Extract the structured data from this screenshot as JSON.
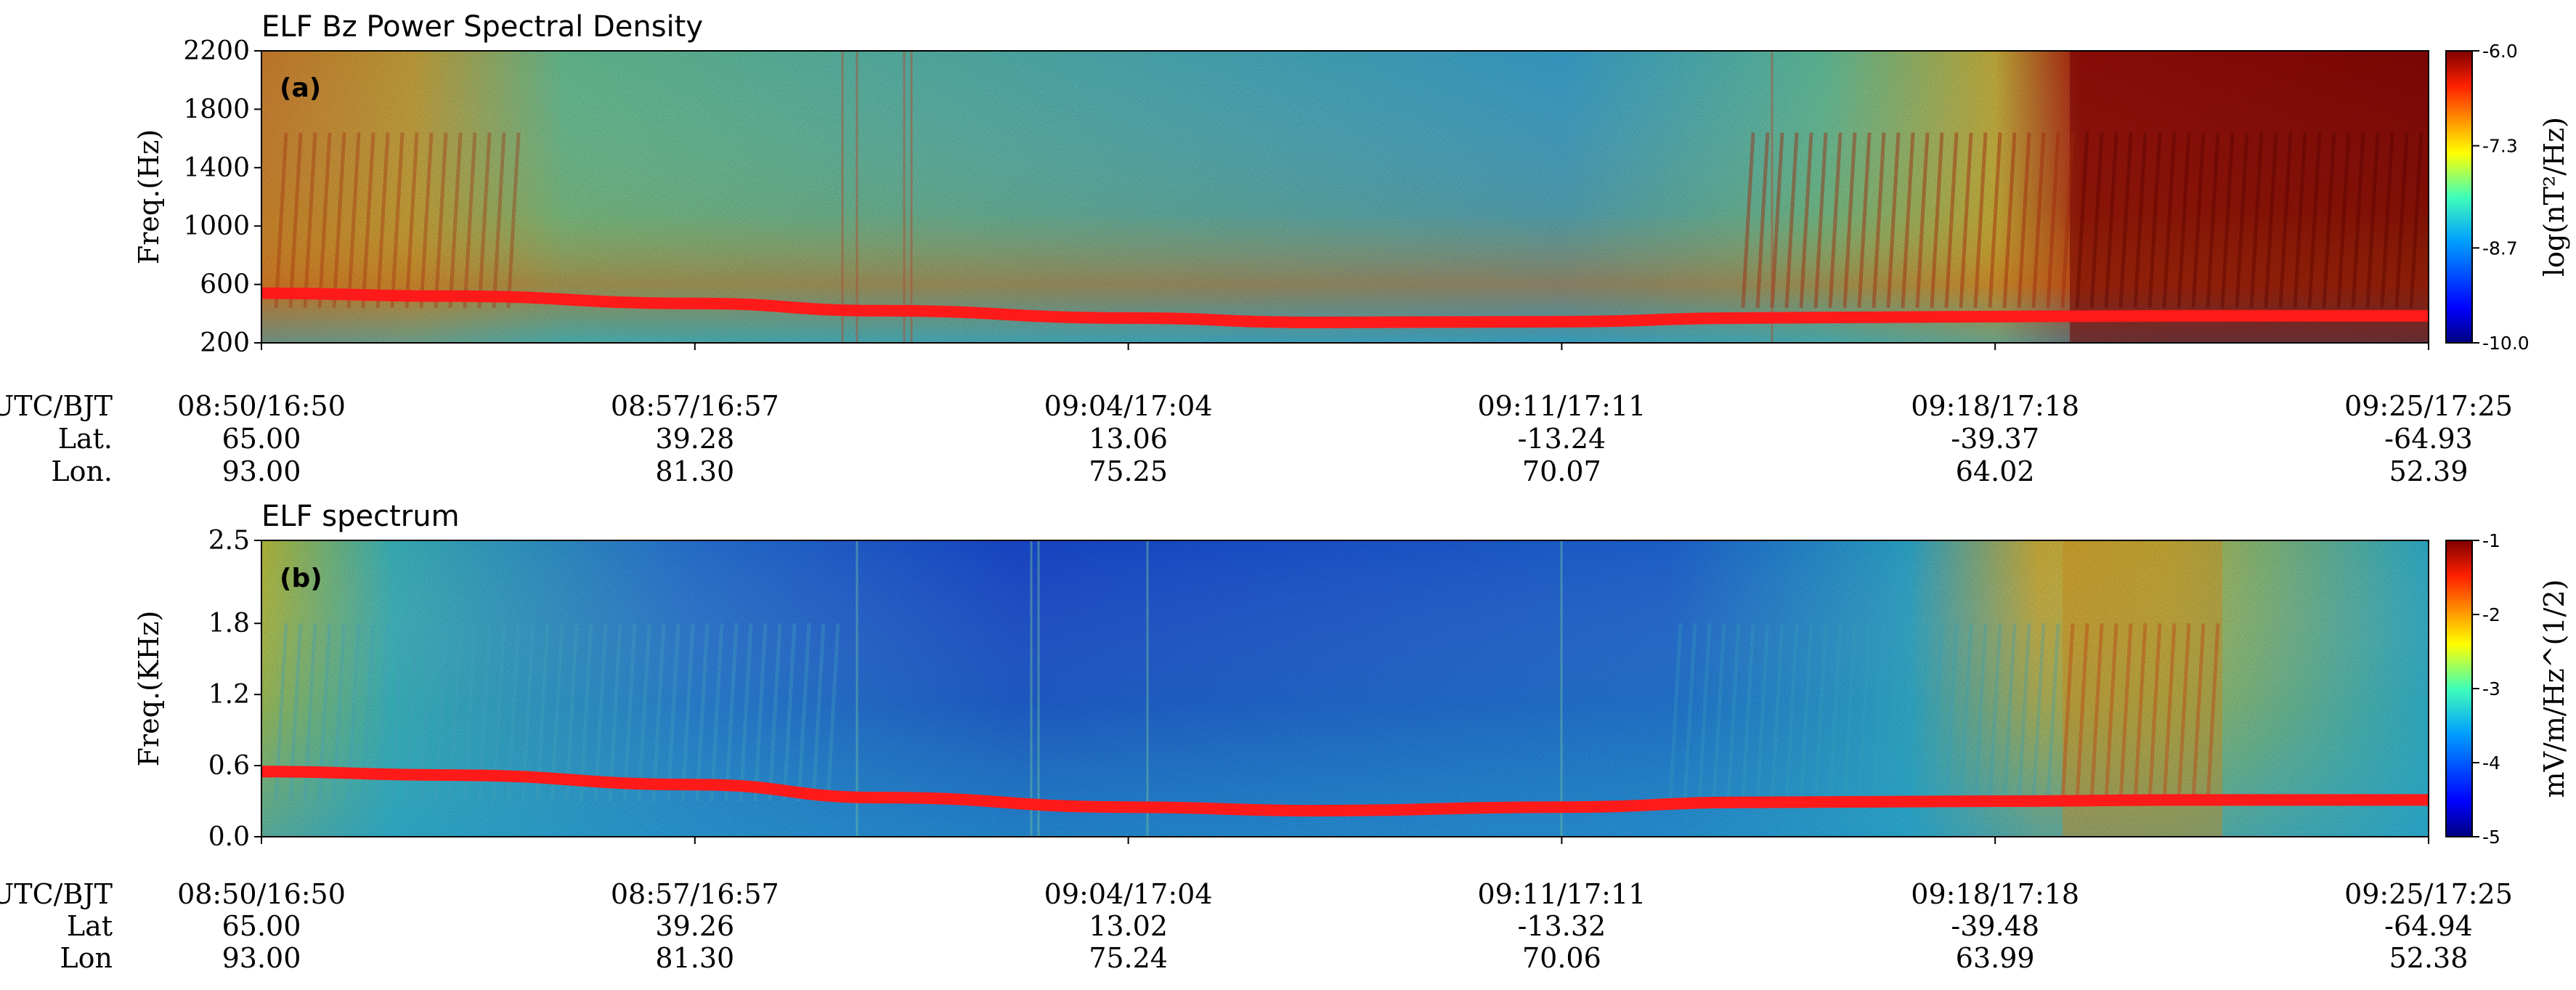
{
  "chart_data": [
    {
      "type": "heatmap",
      "title": "ELF Bz Power Spectral Density",
      "panel_label": "(a)",
      "ylabel": "Freq.(Hz)",
      "ylim": [
        200,
        2200
      ],
      "yticks": [
        "2200",
        "1800",
        "1400",
        "1000",
        "600",
        "200"
      ],
      "colorbar": {
        "label": "log(nT²/Hz)",
        "range": [
          -10.0,
          -6.0
        ],
        "ticks": [
          "-6.0",
          "-7.3",
          "-8.7",
          "-10.0"
        ],
        "colormap": "jet"
      },
      "series": [
        {
          "color": "#ff1a1a",
          "x": [
            "08:50",
            "08:53",
            "08:57",
            "09:00",
            "09:04",
            "09:07",
            "09:11",
            "09:14",
            "09:18",
            "09:21",
            "09:25"
          ],
          "values": [
            540,
            520,
            470,
            420,
            370,
            340,
            345,
            370,
            380,
            385,
            385
          ]
        }
      ],
      "xaxis_rows": {
        "labels": [
          "UTC/BJT",
          "Lat.",
          "Lon."
        ],
        "columns": [
          [
            "08:50/16:50",
            "65.00",
            "93.00"
          ],
          [
            "08:57/16:57",
            "39.28",
            "81.30"
          ],
          [
            "09:04/17:04",
            "13.06",
            "75.25"
          ],
          [
            "09:11/17:11",
            "-13.24",
            "70.07"
          ],
          [
            "09:18/17:18",
            "-39.37",
            "64.02"
          ],
          [
            "09:25/17:25",
            "-64.93",
            "52.39"
          ]
        ]
      }
    },
    {
      "type": "heatmap",
      "title": "ELF spectrum",
      "panel_label": "(b)",
      "ylabel": "Freq.(KHz)",
      "ylim": [
        0.0,
        2.5
      ],
      "yticks": [
        "2.5",
        "1.8",
        "1.2",
        "0.6",
        "0.0"
      ],
      "colorbar": {
        "label": "mV/m/Hz^(1/2)",
        "range": [
          -5,
          -1
        ],
        "ticks": [
          "-1",
          "-2",
          "-3",
          "-4",
          "-5"
        ],
        "colormap": "jet"
      },
      "series": [
        {
          "color": "#ff1a1a",
          "x": [
            "08:50",
            "08:53",
            "08:57",
            "09:00",
            "09:04",
            "09:07",
            "09:11",
            "09:14",
            "09:18",
            "09:21",
            "09:25"
          ],
          "values": [
            0.55,
            0.52,
            0.44,
            0.33,
            0.25,
            0.22,
            0.25,
            0.29,
            0.3,
            0.31,
            0.31
          ]
        }
      ],
      "xaxis_rows": {
        "labels": [
          "UTC/BJT",
          "Lat",
          "Lon"
        ],
        "columns": [
          [
            "08:50/16:50",
            "65.00",
            "93.00"
          ],
          [
            "08:57/16:57",
            "39.26",
            "81.30"
          ],
          [
            "09:04/17:04",
            "13.02",
            "75.24"
          ],
          [
            "09:11/17:11",
            "-13.32",
            "70.06"
          ],
          [
            "09:18/17:18",
            "-39.48",
            "63.99"
          ],
          [
            "09:25/17:25",
            "-64.94",
            "52.38"
          ]
        ]
      }
    }
  ]
}
